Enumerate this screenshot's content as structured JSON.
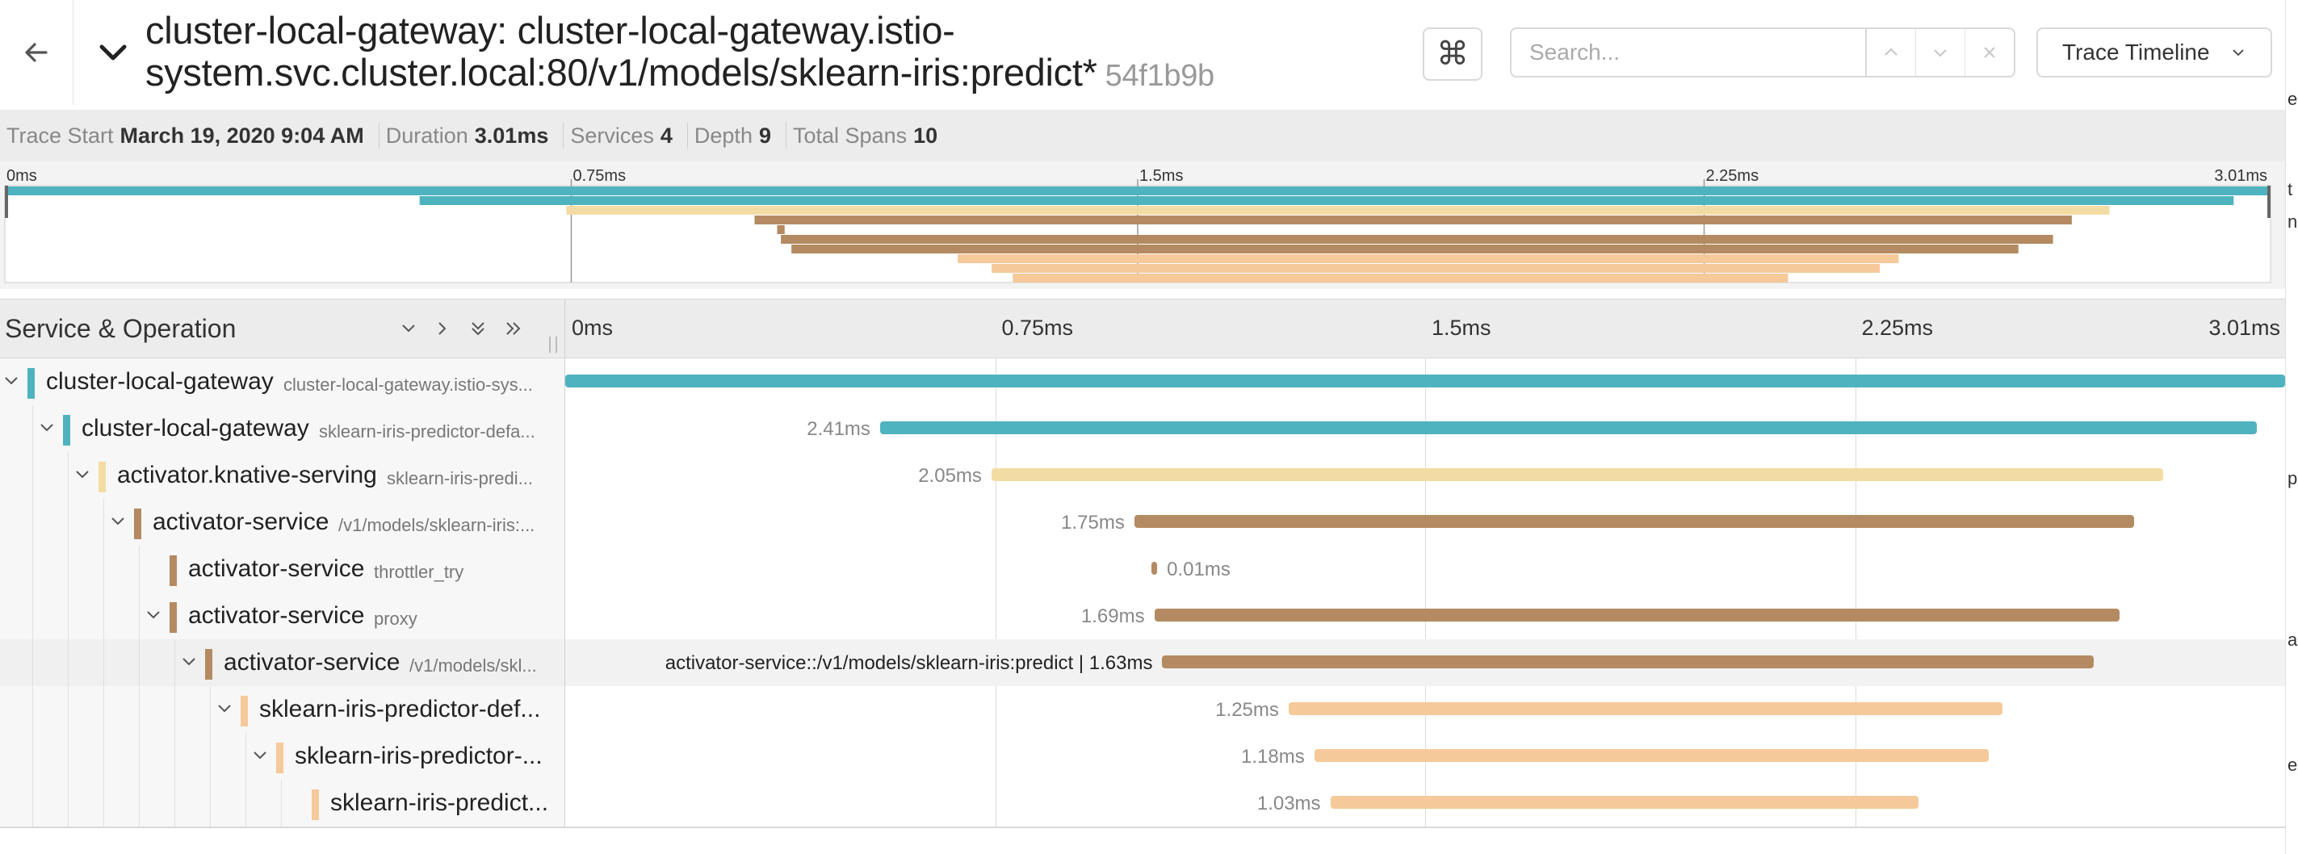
{
  "header": {
    "title": "cluster-local-gateway: cluster-local-gateway.istio-system.svc.cluster.local:80/v1/models/sklearn-iris:predict*",
    "trace_id": "54f1b9b",
    "keyboard_icon": "⌘",
    "search_placeholder": "Search...",
    "view_mode": "Trace Timeline"
  },
  "summary": [
    {
      "label": "Trace Start",
      "value": "March 19, 2020 9:04 AM"
    },
    {
      "label": "Duration",
      "value": "3.01ms"
    },
    {
      "label": "Services",
      "value": "4"
    },
    {
      "label": "Depth",
      "value": "9"
    },
    {
      "label": "Total Spans",
      "value": "10"
    }
  ],
  "minimap": {
    "ticks": [
      "0ms",
      "0.75ms",
      "1.5ms",
      "2.25ms",
      "3.01ms"
    ]
  },
  "timeline": {
    "column_title": "Service & Operation",
    "ticks": [
      "0ms",
      "0.75ms",
      "1.5ms",
      "2.25ms",
      "3.01ms"
    ],
    "total_ms": 3.01,
    "colors": {
      "gateway": "#4fb3bf",
      "knative": "#f3dca4",
      "activator": "#b48a62",
      "predictor": "#f6c99a"
    },
    "spans": [
      {
        "service": "cluster-local-gateway",
        "operation": "cluster-local-gateway.istio-sys...",
        "depth": 0,
        "expandable": true,
        "color": "gateway",
        "start": 0.0,
        "duration": 3.01,
        "label": "",
        "label_side": "none"
      },
      {
        "service": "cluster-local-gateway",
        "operation": "sklearn-iris-predictor-defa...",
        "depth": 1,
        "expandable": true,
        "color": "gateway",
        "start": 0.551,
        "duration": 2.41,
        "label": "2.41ms",
        "label_side": "left"
      },
      {
        "service": "activator.knative-serving",
        "operation": "sklearn-iris-predi...",
        "depth": 2,
        "expandable": true,
        "color": "knative",
        "start": 0.746,
        "duration": 2.05,
        "label": "2.05ms",
        "label_side": "left"
      },
      {
        "service": "activator-service",
        "operation": "/v1/models/sklearn-iris:...",
        "depth": 3,
        "expandable": true,
        "color": "activator",
        "start": 0.996,
        "duration": 1.75,
        "label": "1.75ms",
        "label_side": "left"
      },
      {
        "service": "activator-service",
        "operation": "throttler_try",
        "depth": 4,
        "expandable": false,
        "color": "activator",
        "start": 1.026,
        "duration": 0.01,
        "label": "0.01ms",
        "label_side": "right"
      },
      {
        "service": "activator-service",
        "operation": "proxy",
        "depth": 4,
        "expandable": true,
        "color": "activator",
        "start": 1.031,
        "duration": 1.69,
        "label": "1.69ms",
        "label_side": "left"
      },
      {
        "service": "activator-service",
        "operation": "/v1/models/skl...",
        "depth": 5,
        "expandable": true,
        "color": "activator",
        "start": 1.045,
        "duration": 1.63,
        "label": "activator-service::/v1/models/sklearn-iris:predict | 1.63ms",
        "label_side": "left",
        "hover": true
      },
      {
        "service": "sklearn-iris-predictor-def...",
        "operation": "",
        "depth": 6,
        "expandable": true,
        "color": "predictor",
        "start": 1.266,
        "duration": 1.25,
        "label": "1.25ms",
        "label_side": "left"
      },
      {
        "service": "sklearn-iris-predictor-...",
        "operation": "",
        "depth": 7,
        "expandable": true,
        "color": "predictor",
        "start": 1.311,
        "duration": 1.18,
        "label": "1.18ms",
        "label_side": "left"
      },
      {
        "service": "sklearn-iris-predict...",
        "operation": "",
        "depth": 8,
        "expandable": false,
        "color": "predictor",
        "start": 1.339,
        "duration": 1.03,
        "label": "1.03ms",
        "label_side": "left"
      }
    ]
  },
  "right_edge_glyphs": [
    "en",
    "t",
    "n",
    "p",
    "a",
    "e"
  ]
}
